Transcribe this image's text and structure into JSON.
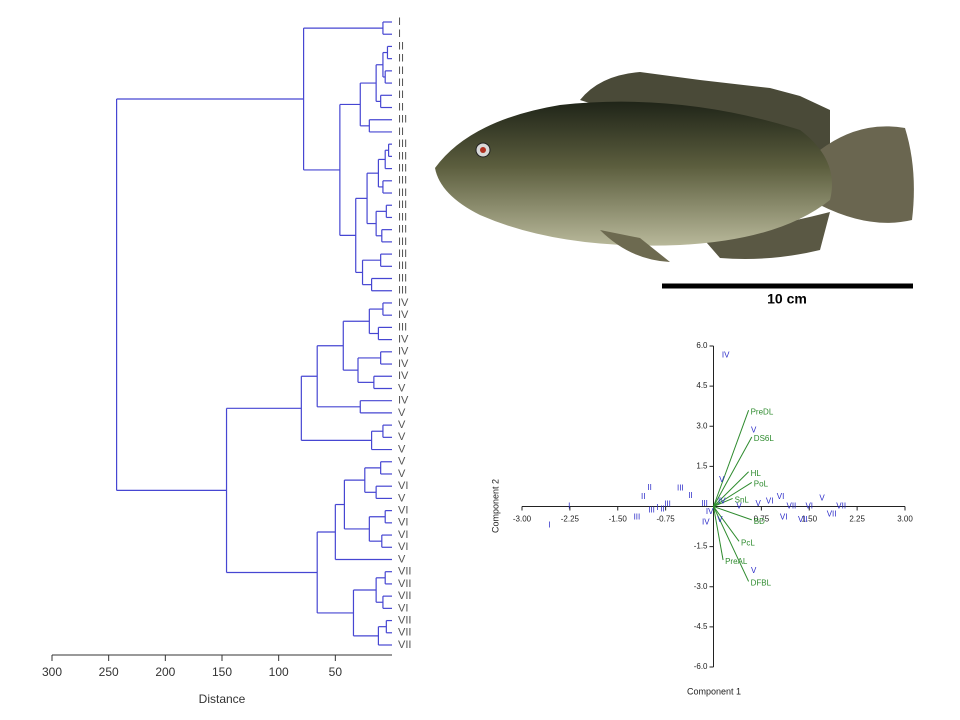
{
  "chart_data": [
    {
      "type": "dendrogram",
      "xlabel": "Distance",
      "xlim": [
        300,
        0
      ],
      "xticks": [
        300,
        250,
        200,
        150,
        100,
        50
      ],
      "color": "#4646d2",
      "tree": [
        243,
        [
          78,
          [
            8,
            "I",
            "I"
          ],
          [
            46,
            [
              28,
              [
                14,
                [
                  8,
                  [
                    4,
                    "II",
                    "II"
                  ],
                  [
                    6,
                    "II",
                    "II"
                  ]
                ],
                [
                  10,
                  "II",
                  "II"
                ]
              ],
              [
                20,
                "III",
                "II"
              ]
            ],
            [
              32,
              [
                22,
                [
                  12,
                  [
                    6,
                    [
                      3,
                      "III",
                      "III"
                    ],
                    "III"
                  ],
                  [
                    8,
                    "III",
                    "III"
                  ]
                ],
                [
                  14,
                  [
                    5,
                    "III",
                    "III"
                  ],
                  [
                    9,
                    "III",
                    "III"
                  ]
                ]
              ],
              [
                26,
                [
                  10,
                  "III",
                  "III"
                ],
                [
                  18,
                  "III",
                  "III"
                ]
              ]
            ]
          ]
        ],
        [
          146,
          [
            80,
            [
              66,
              [
                43,
                [
                  20,
                  [
                    8,
                    "IV",
                    "IV"
                  ],
                  [
                    12,
                    "III",
                    "IV"
                  ]
                ],
                [
                  30,
                  [
                    10,
                    "IV",
                    "IV"
                  ],
                  [
                    16,
                    "IV",
                    "V"
                  ]
                ]
              ],
              [
                28,
                "IV",
                "V"
              ]
            ],
            [
              18,
              [
                8,
                "V",
                "V"
              ],
              "V"
            ]
          ],
          [
            66,
            [
              50,
              [
                42,
                [
                  24,
                  [
                    10,
                    "V",
                    "V"
                  ],
                  [
                    14,
                    "VI",
                    "V"
                  ]
                ],
                [
                  20,
                  [
                    6,
                    "VI",
                    "VI"
                  ],
                  [
                    9,
                    "VI",
                    "VI"
                  ]
                ]
              ],
              "V"
            ],
            [
              34,
              [
                14,
                [
                  6,
                  "VII",
                  "VII"
                ],
                [
                  8,
                  "VII",
                  "VI"
                ]
              ],
              [
                12,
                [
                  5,
                  "VII",
                  "VII"
                ],
                "VII"
              ]
            ]
          ]
        ]
      ]
    },
    {
      "type": "biplot",
      "xlabel": "Component 1",
      "ylabel": "Component 2",
      "xlim": [
        -3,
        3
      ],
      "ylim": [
        -6,
        6
      ],
      "xticks": [
        {
          "value": -3,
          "label": "-3.00"
        },
        {
          "value": -2.25,
          "label": "-2.25"
        },
        {
          "value": -1.5,
          "label": "-1.50"
        },
        {
          "value": -0.75,
          "label": "-0.75"
        },
        {
          "value": 0.75,
          "label": "0.75"
        },
        {
          "value": 1.5,
          "label": "1.50"
        },
        {
          "value": 2.25,
          "label": "2.25"
        },
        {
          "value": 3,
          "label": "3.00"
        }
      ],
      "yticks": [
        {
          "value": 6,
          "label": "6.0"
        },
        {
          "value": 4.5,
          "label": "4.5"
        },
        {
          "value": 3,
          "label": "3.0"
        },
        {
          "value": 1.5,
          "label": "1.5"
        },
        {
          "value": -1.5,
          "label": "-1.5"
        },
        {
          "value": -3,
          "label": "-3.0"
        },
        {
          "value": -4.5,
          "label": "-4.5"
        },
        {
          "value": -6,
          "label": "-6.0"
        }
      ],
      "points": {
        "color": "#2b2bc8",
        "labels": [
          "I",
          "I",
          "IV",
          "V",
          "V",
          "II",
          "II",
          "III",
          "III",
          "I",
          "III",
          "II",
          "III",
          "V",
          "IV",
          "IV",
          "V",
          "IV",
          "V",
          "V",
          "VI",
          "VI",
          "VII",
          "VI",
          "VI",
          "VII",
          "VII",
          "V",
          "VII",
          "III",
          "II"
        ],
        "x": [
          -2.26,
          -2.57,
          0.19,
          0.63,
          0.63,
          -1.0,
          -1.1,
          -1.2,
          -0.97,
          -0.88,
          -0.52,
          -0.36,
          -0.14,
          0.13,
          -0.06,
          -0.12,
          0.1,
          0.13,
          0.4,
          0.7,
          0.88,
          1.05,
          1.22,
          1.1,
          1.5,
          1.4,
          1.85,
          1.7,
          2.0,
          -0.72,
          -0.8
        ],
        "y": [
          0.0,
          -0.7,
          5.65,
          2.85,
          -2.4,
          0.7,
          0.35,
          -0.4,
          -0.15,
          -0.05,
          0.67,
          0.4,
          0.1,
          1.0,
          -0.2,
          -0.6,
          -0.5,
          0.2,
          0.0,
          0.1,
          0.2,
          0.35,
          0.0,
          -0.4,
          0.0,
          -0.5,
          -0.3,
          0.3,
          0.0,
          0.07,
          -0.1
        ]
      },
      "loadings": {
        "color": "#2e8b2e",
        "names": [
          "PreDL",
          "DS6L",
          "HL",
          "PoL",
          "SnL",
          "BD",
          "PcL",
          "PreAL",
          "DFBL"
        ],
        "x": [
          0.55,
          0.6,
          0.55,
          0.6,
          0.3,
          0.6,
          0.4,
          0.15,
          0.55
        ],
        "y": [
          3.6,
          2.6,
          1.3,
          0.9,
          0.3,
          -0.5,
          -1.3,
          -2.0,
          -2.8
        ]
      }
    }
  ],
  "photo": {
    "scale_bar_label": "10 cm"
  }
}
